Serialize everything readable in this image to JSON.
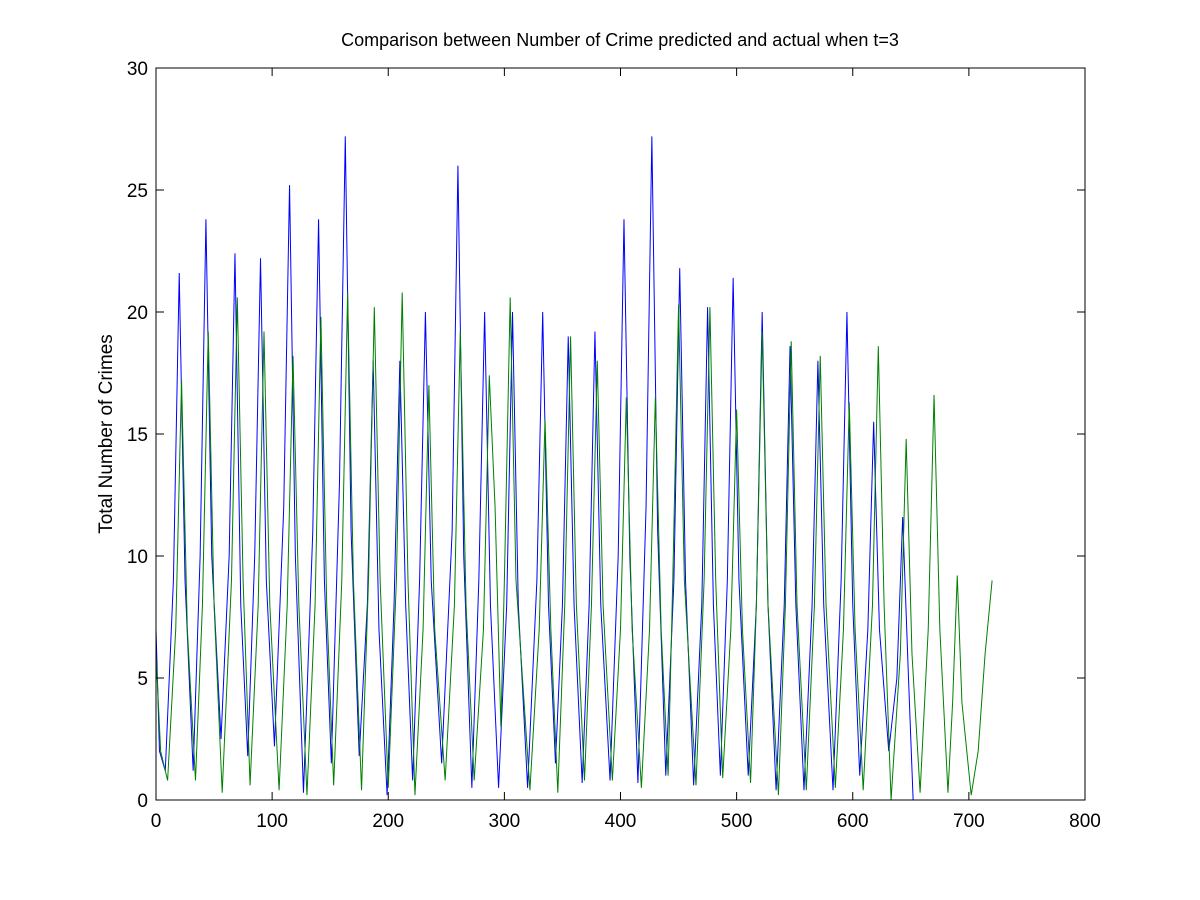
{
  "chart_data": {
    "type": "line",
    "title": "Comparison between Number of Crime predicted and actual when t=3",
    "y_label": "Total Number of Crimes",
    "xlim": [
      0,
      800
    ],
    "xticks": [
      0,
      100,
      200,
      300,
      400,
      500,
      600,
      700,
      800
    ],
    "ylim": [
      0,
      30
    ],
    "yticks": [
      0,
      5,
      10,
      15,
      20,
      25,
      30
    ],
    "grid": false,
    "series": [
      {
        "color": "#0000ff",
        "x": [
          0,
          3,
          8,
          15,
          20,
          25,
          32,
          38,
          43,
          48,
          56,
          63,
          68,
          73,
          79,
          85,
          90,
          95,
          102,
          110,
          115,
          120,
          127,
          135,
          140,
          145,
          151,
          158,
          163,
          168,
          175,
          182,
          187,
          192,
          199,
          205,
          210,
          215,
          221,
          227,
          232,
          237,
          246,
          255,
          260,
          265,
          272,
          278,
          283,
          288,
          295,
          302,
          307,
          312,
          320,
          328,
          333,
          338,
          344,
          350,
          355,
          360,
          367,
          373,
          378,
          383,
          391,
          398,
          403,
          408,
          415,
          422,
          427,
          432,
          439,
          446,
          451,
          456,
          463,
          470,
          475,
          480,
          486,
          492,
          497,
          502,
          510,
          517,
          522,
          527,
          534,
          541,
          546,
          551,
          558,
          565,
          570,
          575,
          583,
          590,
          595,
          600,
          606,
          613,
          618,
          623,
          631,
          638,
          643,
          648,
          652
        ],
        "values": [
          7,
          2,
          1.2,
          9,
          21.6,
          9,
          1.2,
          10,
          23.8,
          10,
          2.5,
          10,
          22.4,
          8,
          1.8,
          10,
          22.2,
          9,
          2.2,
          12,
          25.2,
          10,
          0.3,
          11,
          23.8,
          9,
          1.5,
          13,
          27.2,
          11,
          1.8,
          8,
          18,
          7,
          0.2,
          8,
          18,
          8,
          0.8,
          9,
          20,
          9,
          1.5,
          11,
          26,
          10,
          0.5,
          9,
          20,
          8,
          0.5,
          8,
          20,
          8,
          0.5,
          9,
          20,
          8,
          1.5,
          8,
          19,
          8,
          0.7,
          8,
          19.2,
          8,
          0.8,
          10,
          23.8,
          10,
          0.7,
          12,
          27.2,
          11,
          1,
          9,
          21.8,
          9,
          0.6,
          8,
          20.2,
          8,
          1,
          9,
          21.4,
          9,
          1,
          8,
          20,
          8,
          0.4,
          8,
          18.6,
          8,
          0.4,
          8,
          18,
          8,
          0.4,
          9,
          20,
          8,
          1,
          7,
          15.5,
          7,
          2,
          5,
          11.6,
          5,
          0
        ]
      },
      {
        "color": "#008000",
        "x": [
          0,
          4,
          10,
          17,
          22,
          27,
          34,
          40,
          45,
          50,
          57,
          65,
          70,
          75,
          81,
          88,
          93,
          98,
          106,
          113,
          118,
          123,
          130,
          137,
          142,
          147,
          153,
          160,
          165,
          170,
          177,
          183,
          188,
          193,
          200,
          207,
          212,
          217,
          223,
          230,
          235,
          240,
          249,
          257,
          262,
          267,
          274,
          282,
          287,
          292,
          297,
          300,
          305,
          310,
          322,
          330,
          335,
          340,
          346,
          352,
          357,
          362,
          369,
          375,
          380,
          385,
          393,
          400,
          405,
          410,
          418,
          425,
          430,
          435,
          441,
          445,
          450,
          455,
          465,
          472,
          477,
          482,
          488,
          495,
          500,
          505,
          512,
          517,
          522,
          527,
          536,
          542,
          547,
          552,
          560,
          567,
          572,
          577,
          585,
          592,
          597,
          602,
          609,
          617,
          622,
          627,
          633,
          641,
          646,
          651,
          658,
          665,
          670,
          675,
          682,
          686,
          690,
          694,
          702,
          708,
          714,
          720
        ],
        "values": [
          6,
          2,
          0.8,
          7,
          17.2,
          7,
          0.8,
          8,
          19.2,
          8,
          0.3,
          9,
          20.6,
          9,
          0.6,
          8,
          19.2,
          8,
          0.4,
          8,
          18.2,
          8,
          0.2,
          8,
          19.8,
          8,
          0.6,
          9,
          20.8,
          9,
          0.4,
          9,
          20.2,
          9,
          0.5,
          9,
          20.8,
          9,
          0.2,
          7,
          17,
          7,
          0.8,
          8,
          19.2,
          8,
          0.8,
          7,
          17.4,
          12,
          3,
          9,
          20.6,
          9,
          0.4,
          7,
          15.6,
          7,
          0.3,
          8,
          19,
          8,
          0.8,
          8,
          18,
          8,
          0.8,
          7,
          16.5,
          7,
          0.5,
          7,
          16.5,
          7,
          1,
          9,
          20.3,
          9,
          0.6,
          9,
          20.2,
          9,
          0.9,
          7,
          16,
          7,
          0.7,
          8,
          19.2,
          8,
          0.2,
          8,
          18.8,
          8,
          0.4,
          8,
          18.2,
          8,
          0.5,
          7,
          16.3,
          7,
          0.4,
          8,
          18.6,
          8,
          0,
          6,
          14.8,
          6,
          0.3,
          7,
          16.6,
          7,
          0.3,
          4,
          9.2,
          4,
          0.2,
          2,
          6,
          9
        ]
      }
    ]
  }
}
